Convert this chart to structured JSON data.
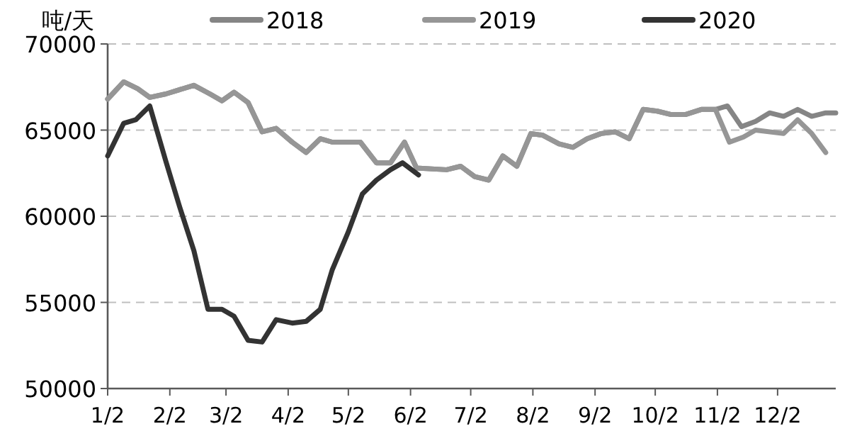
{
  "chart_data": {
    "type": "line",
    "ylabel": "吨/天",
    "xlim": [
      "--01-02",
      "--12-31"
    ],
    "ylim": [
      50000,
      70000
    ],
    "xticks": [
      {
        "value": "--01-02",
        "label": "1/2"
      },
      {
        "value": "--02-02",
        "label": "2/2"
      },
      {
        "value": "--03-02",
        "label": "3/2"
      },
      {
        "value": "--04-02",
        "label": "4/2"
      },
      {
        "value": "--05-02",
        "label": "5/2"
      },
      {
        "value": "--06-02",
        "label": "6/2"
      },
      {
        "value": "--07-02",
        "label": "7/2"
      },
      {
        "value": "--08-02",
        "label": "8/2"
      },
      {
        "value": "--09-02",
        "label": "9/2"
      },
      {
        "value": "--10-02",
        "label": "10/2"
      },
      {
        "value": "--11-02",
        "label": "11/2"
      },
      {
        "value": "--12-02",
        "label": "12/2"
      }
    ],
    "yticks": [
      50000,
      55000,
      60000,
      65000,
      70000
    ],
    "grid": "y",
    "legend": "top",
    "marker": "none",
    "line_style": "solid",
    "series": [
      {
        "name": "2018",
        "color": "#858585",
        "x": [
          "--01-02",
          "--01-10",
          "--01-17",
          "--01-23",
          "--01-31",
          "--02-14",
          "--02-22",
          "--02-28",
          "--03-06",
          "--03-13",
          "--03-20",
          "--03-27",
          "--04-04",
          "--04-11",
          "--04-18",
          "--04-24",
          "--05-08",
          "--05-16",
          "--05-23",
          "--05-30",
          "--06-05",
          "--06-20",
          "--06-27",
          "--07-04",
          "--07-11",
          "--07-18",
          "--07-25",
          "--08-01",
          "--08-07",
          "--08-15",
          "--08-22",
          "--08-29",
          "--09-05",
          "--09-12",
          "--09-19",
          "--09-26",
          "--10-03",
          "--10-10",
          "--10-17",
          "--10-25",
          "--11-01",
          "--11-07",
          "--11-14",
          "--11-21",
          "--11-28",
          "--12-05",
          "--12-12",
          "--12-19",
          "--12-26",
          "--12-31"
        ],
        "values": [
          66800,
          67800,
          67400,
          66900,
          67100,
          67600,
          67100,
          66700,
          67200,
          66600,
          64900,
          65100,
          64300,
          63700,
          64500,
          64300,
          64300,
          63100,
          63100,
          64300,
          62800,
          62700,
          62900,
          62300,
          62100,
          63500,
          62900,
          64800,
          64700,
          64200,
          64000,
          64500,
          64800,
          64900,
          64500,
          66200,
          66100,
          65900,
          65900,
          66200,
          66200,
          66400,
          65200,
          65500,
          66000,
          65800,
          66200,
          65800,
          66000,
          66000
        ]
      },
      {
        "name": "2019",
        "color": "#969696",
        "x": [
          "--01-02",
          "--01-10",
          "--01-17",
          "--01-23",
          "--01-31",
          "--02-14",
          "--02-22",
          "--02-28",
          "--03-06",
          "--03-13",
          "--03-20",
          "--03-27",
          "--04-04",
          "--04-11",
          "--04-18",
          "--04-24",
          "--05-08",
          "--05-16",
          "--05-23",
          "--05-30",
          "--06-05",
          "--06-20",
          "--06-27",
          "--07-04",
          "--07-11",
          "--07-18",
          "--07-25",
          "--08-01",
          "--08-07",
          "--08-15",
          "--08-22",
          "--08-29",
          "--09-05",
          "--09-12",
          "--09-19",
          "--09-26",
          "--10-03",
          "--10-10",
          "--10-17",
          "--10-25",
          "--11-01",
          "--11-08",
          "--11-15",
          "--11-21",
          "--12-05",
          "--12-12",
          "--12-19",
          "--12-26"
        ],
        "values": [
          66800,
          67800,
          67400,
          66900,
          67100,
          67600,
          67100,
          66700,
          67200,
          66600,
          64900,
          65100,
          64300,
          63700,
          64500,
          64300,
          64300,
          63100,
          63100,
          64300,
          62800,
          62700,
          62900,
          62300,
          62100,
          63500,
          62900,
          64800,
          64700,
          64200,
          64000,
          64500,
          64800,
          64900,
          64500,
          66200,
          66100,
          65900,
          65900,
          66200,
          66200,
          64300,
          64600,
          65000,
          64800,
          65600,
          64800,
          63700
        ]
      },
      {
        "name": "2020",
        "color": "#333333",
        "x": [
          "--01-02",
          "--01-10",
          "--01-16",
          "--01-23",
          "--01-31",
          "--02-07",
          "--02-14",
          "--02-21",
          "--02-28",
          "--03-06",
          "--03-13",
          "--03-20",
          "--03-27",
          "--04-04",
          "--04-11",
          "--04-18",
          "--04-24",
          "--05-02",
          "--05-09",
          "--05-16",
          "--05-23",
          "--05-29",
          "--06-06"
        ],
        "values": [
          63500,
          65400,
          65600,
          66400,
          63200,
          60500,
          58000,
          54600,
          54600,
          54200,
          52800,
          52700,
          54000,
          53800,
          53900,
          54600,
          56900,
          59100,
          61300,
          62100,
          62700,
          63100,
          62400
        ]
      }
    ]
  }
}
